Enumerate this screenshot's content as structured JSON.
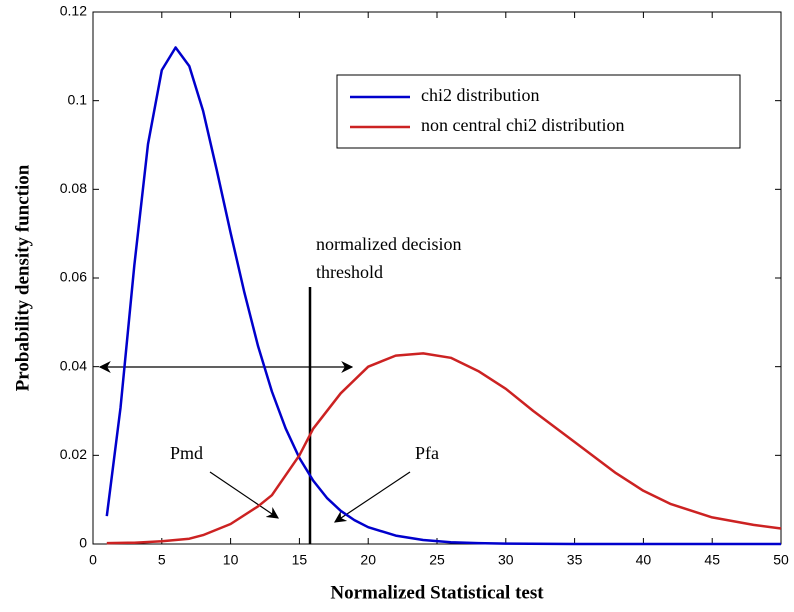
{
  "chart_data": {
    "type": "line",
    "x_label": "Normalized Statistical test",
    "y_label": "Probability density function",
    "xlim": [
      0,
      50
    ],
    "xticks": [
      0,
      5,
      10,
      15,
      20,
      25,
      30,
      35,
      40,
      45,
      50
    ],
    "ylim": [
      0,
      0.12
    ],
    "yticks": [
      0,
      0.02,
      0.04,
      0.06,
      0.08,
      0.1,
      0.12
    ],
    "legend": "upper right",
    "annotations": {
      "threshold": [
        "normalized decision",
        "threshold"
      ],
      "pmd": "Pmd",
      "pfa": "Pfa"
    },
    "series": [
      {
        "name": "chi2 distribution",
        "color": "#0000cc",
        "x": [
          1,
          2,
          3,
          4,
          5,
          6,
          7,
          8,
          9,
          10,
          11,
          12,
          13,
          14,
          15,
          16,
          17,
          18,
          19,
          20,
          22,
          24,
          26,
          28,
          30,
          35,
          40,
          45,
          50
        ],
        "values": [
          0.0063,
          0.0307,
          0.0628,
          0.0902,
          0.1069,
          0.112,
          0.1078,
          0.0977,
          0.0843,
          0.0702,
          0.0567,
          0.0446,
          0.0344,
          0.0261,
          0.0194,
          0.0143,
          0.0104,
          0.0075,
          0.0054,
          0.0038,
          0.0019,
          0.0009,
          0.0004,
          0.0002,
          0.0001,
          0,
          0,
          0,
          0
        ]
      },
      {
        "name": "non central chi2 distribution",
        "color": "#cc2222",
        "x": [
          1,
          3,
          5,
          7,
          8,
          10,
          12,
          13,
          15,
          16,
          18,
          20,
          22,
          24,
          26,
          28,
          30,
          32,
          35,
          38,
          40,
          42,
          45,
          48,
          50
        ],
        "values": [
          0.0002,
          0.0003,
          0.0006,
          0.0012,
          0.002,
          0.0045,
          0.0085,
          0.011,
          0.02,
          0.026,
          0.034,
          0.04,
          0.0425,
          0.043,
          0.042,
          0.039,
          0.035,
          0.03,
          0.023,
          0.016,
          0.012,
          0.009,
          0.006,
          0.0043,
          0.0035
        ]
      }
    ]
  }
}
